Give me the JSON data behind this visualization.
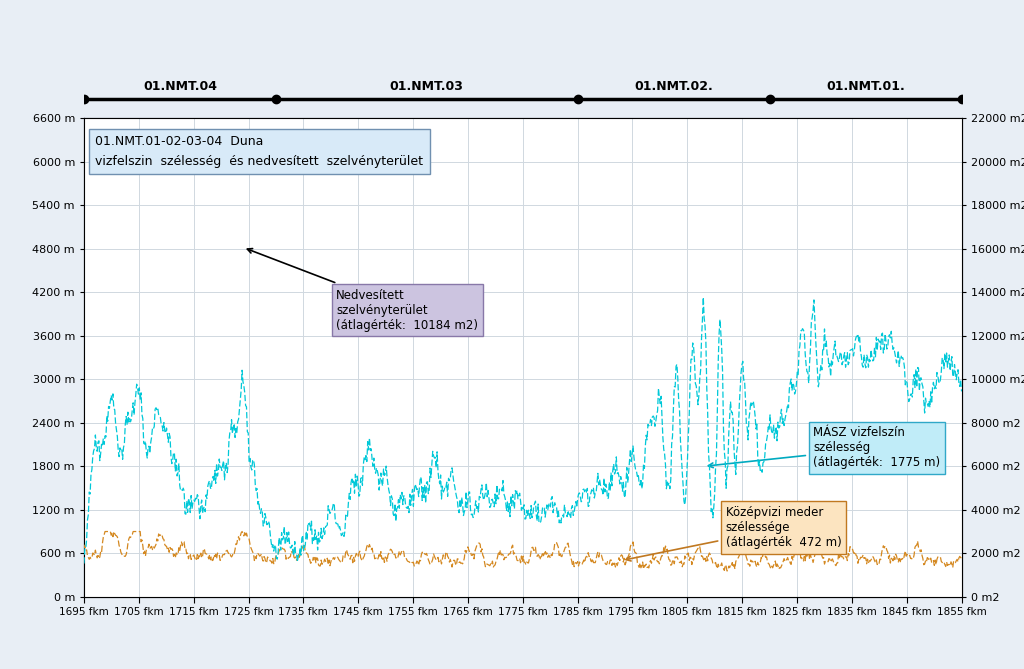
{
  "title_box": "01.NMT.01-02-03-04  Duna\nvizfelszin  szélesség  és nedvesített  szelvényterület",
  "x_start": 1695,
  "x_end": 1855,
  "x_ticks": [
    1695,
    1705,
    1715,
    1725,
    1735,
    1745,
    1755,
    1765,
    1775,
    1785,
    1795,
    1805,
    1815,
    1825,
    1835,
    1845,
    1855
  ],
  "yleft_min": 0,
  "yleft_max": 6600,
  "yleft_ticks": [
    0,
    600,
    1200,
    1800,
    2400,
    3000,
    3600,
    4200,
    4800,
    5400,
    6000,
    6600
  ],
  "yright_min": 0,
  "yright_max": 22000,
  "yright_ticks": [
    0,
    2000,
    4000,
    6000,
    8000,
    10000,
    12000,
    14000,
    16000,
    18000,
    20000,
    22000
  ],
  "segments": [
    {
      "label": "01.NMT.04",
      "x_start": 1695,
      "x_end": 1730
    },
    {
      "label": "01.NMT.03",
      "x_start": 1730,
      "x_end": 1785
    },
    {
      "label": "01.NMT.02.",
      "x_start": 1785,
      "x_end": 1820
    },
    {
      "label": "01.NMT.01.",
      "x_start": 1820,
      "x_end": 1855
    }
  ],
  "annotation_nedvesitett": "Nedvesített\nszelvényterület\n(átlagérték:  10184 m2)",
  "annotation_masz": "MÁSZ vizfelszín\nszélesség\n(átlagérték:  1775 m)",
  "annotation_kozepvizi": "Középvizi meder\nszélessége\n(átlagérték  472 m)",
  "color_nedvesitett": "#3d3b6e",
  "color_masz": "#00c8d8",
  "color_kozepvizi": "#d48820",
  "bg_color": "#e8eef5",
  "plot_bg": "#ffffff",
  "title_box_bg": "#d8eaf8",
  "nedvesitett_box_bg": "#ccc4e0",
  "masz_box_bg": "#c0ecf8",
  "kozepvizi_box_bg": "#fce4c0",
  "grid_color": "#d0d8e0"
}
